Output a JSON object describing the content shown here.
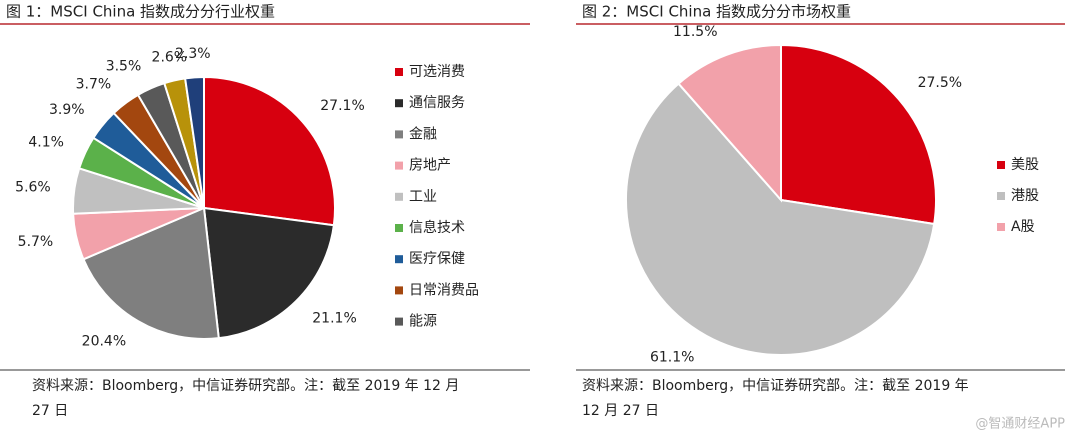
{
  "chart_data": [
    {
      "type": "pie",
      "title": "图 1：MSCI China 指数成分分行业权重",
      "categories": [
        "可选消费",
        "通信服务",
        "金融",
        "房地产",
        "工业",
        "信息技术",
        "医疗保健",
        "日常消费品",
        "能源",
        null,
        null
      ],
      "values": [
        27.1,
        21.1,
        20.4,
        5.7,
        5.6,
        4.1,
        3.9,
        3.7,
        3.5,
        2.6,
        2.3
      ],
      "value_labels": [
        "27.1%",
        "21.1%",
        "20.4%",
        "5.7%",
        "5.6%",
        "4.1%",
        "3.9%",
        "3.7%",
        "3.5%",
        "2.6%",
        "2.3%"
      ],
      "colors": [
        "#d7000f",
        "#2b2b2b",
        "#7f7f7f",
        "#f2a1aa",
        "#c0c0c0",
        "#5bb14a",
        "#1f5c99",
        "#a3470f",
        "#595959",
        "#b8920a",
        "#1f3f7a"
      ],
      "source_lines": [
        "资料来源：Bloomberg，中信证券研究部。注：截至 2019 年 12 月",
        "27 日"
      ]
    },
    {
      "type": "pie",
      "title": "图 2：MSCI China 指数成分分市场权重",
      "categories": [
        "美股",
        "港股",
        "A股"
      ],
      "values": [
        27.5,
        61.1,
        11.5
      ],
      "value_labels": [
        "27.5%",
        "61.1%",
        "11.5%"
      ],
      "colors": [
        "#d7000f",
        "#bfbfbf",
        "#f2a1aa"
      ],
      "source_lines": [
        "资料来源：Bloomberg，中信证券研究部。注：截至 2019 年",
        "12 月 27 日"
      ]
    }
  ],
  "watermark": "@智通财经APP"
}
